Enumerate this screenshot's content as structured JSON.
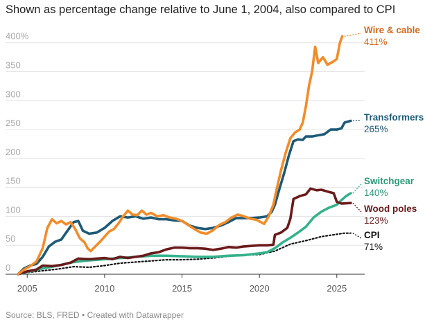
{
  "subtitle": "Shown as percentage change relative to June 1, 2004, also compared to CPI",
  "source": "Source: BLS, FRED • Created with Datawrapper",
  "chart_data": {
    "type": "line",
    "xlim": [
      2003.6,
      2026.8
    ],
    "ylim": [
      0,
      420
    ],
    "y_ticks": [
      {
        "value": 0,
        "label": "0"
      },
      {
        "value": 50,
        "label": "50"
      },
      {
        "value": 100,
        "label": "100"
      },
      {
        "value": 150,
        "label": "150"
      },
      {
        "value": 200,
        "label": "200"
      },
      {
        "value": 250,
        "label": "250"
      },
      {
        "value": 300,
        "label": "300"
      },
      {
        "value": 350,
        "label": "350"
      },
      {
        "value": 400,
        "label": "400%"
      }
    ],
    "x_ticks": [
      {
        "value": 2005,
        "label": "2005"
      },
      {
        "value": 2010,
        "label": "2010"
      },
      {
        "value": 2015,
        "label": "2015"
      },
      {
        "value": 2020,
        "label": "2020"
      },
      {
        "value": 2025,
        "label": "2025"
      }
    ],
    "series": [
      {
        "name": "Wire & cable",
        "end_label": "411%",
        "color": "#f28c28",
        "label_color": "#d4691a",
        "dash": false,
        "points": [
          [
            2004.4,
            0
          ],
          [
            2004.8,
            8
          ],
          [
            2005.2,
            14
          ],
          [
            2005.6,
            22
          ],
          [
            2006.0,
            45
          ],
          [
            2006.3,
            80
          ],
          [
            2006.6,
            95
          ],
          [
            2006.9,
            88
          ],
          [
            2007.2,
            92
          ],
          [
            2007.5,
            86
          ],
          [
            2007.8,
            90
          ],
          [
            2008.1,
            78
          ],
          [
            2008.4,
            62
          ],
          [
            2008.7,
            55
          ],
          [
            2008.9,
            45
          ],
          [
            2009.1,
            40
          ],
          [
            2009.4,
            48
          ],
          [
            2009.7,
            56
          ],
          [
            2010.0,
            65
          ],
          [
            2010.3,
            74
          ],
          [
            2010.6,
            78
          ],
          [
            2010.9,
            88
          ],
          [
            2011.2,
            100
          ],
          [
            2011.5,
            110
          ],
          [
            2011.8,
            103
          ],
          [
            2012.1,
            102
          ],
          [
            2012.4,
            110
          ],
          [
            2012.7,
            103
          ],
          [
            2013.0,
            106
          ],
          [
            2013.4,
            100
          ],
          [
            2013.8,
            102
          ],
          [
            2014.2,
            98
          ],
          [
            2014.6,
            96
          ],
          [
            2015.0,
            92
          ],
          [
            2015.4,
            85
          ],
          [
            2015.8,
            78
          ],
          [
            2016.2,
            72
          ],
          [
            2016.6,
            70
          ],
          [
            2017.0,
            76
          ],
          [
            2017.4,
            85
          ],
          [
            2017.8,
            90
          ],
          [
            2018.2,
            98
          ],
          [
            2018.6,
            103
          ],
          [
            2019.0,
            100
          ],
          [
            2019.4,
            96
          ],
          [
            2019.8,
            94
          ],
          [
            2020.1,
            90
          ],
          [
            2020.3,
            87
          ],
          [
            2020.6,
            100
          ],
          [
            2020.9,
            120
          ],
          [
            2021.1,
            145
          ],
          [
            2021.4,
            180
          ],
          [
            2021.7,
            210
          ],
          [
            2022.0,
            235
          ],
          [
            2022.3,
            245
          ],
          [
            2022.6,
            250
          ],
          [
            2022.8,
            262
          ],
          [
            2023.0,
            290
          ],
          [
            2023.2,
            325
          ],
          [
            2023.4,
            350
          ],
          [
            2023.6,
            393
          ],
          [
            2023.8,
            365
          ],
          [
            2024.1,
            375
          ],
          [
            2024.4,
            362
          ],
          [
            2024.8,
            368
          ],
          [
            2025.0,
            372
          ],
          [
            2025.2,
            400
          ],
          [
            2025.35,
            411
          ]
        ]
      },
      {
        "name": "Transformers",
        "end_label": "265%",
        "color": "#1d5a78",
        "label_color": "#1d5a78",
        "dash": false,
        "points": [
          [
            2004.4,
            0
          ],
          [
            2004.8,
            10
          ],
          [
            2005.2,
            15
          ],
          [
            2005.6,
            18
          ],
          [
            2006.0,
            30
          ],
          [
            2006.4,
            48
          ],
          [
            2006.8,
            56
          ],
          [
            2007.2,
            60
          ],
          [
            2007.6,
            75
          ],
          [
            2008.0,
            90
          ],
          [
            2008.3,
            92
          ],
          [
            2008.6,
            75
          ],
          [
            2009.0,
            70
          ],
          [
            2009.5,
            72
          ],
          [
            2010.0,
            80
          ],
          [
            2010.5,
            92
          ],
          [
            2011.0,
            100
          ],
          [
            2011.5,
            98
          ],
          [
            2012.0,
            100
          ],
          [
            2012.5,
            96
          ],
          [
            2013.0,
            98
          ],
          [
            2013.5,
            95
          ],
          [
            2014.0,
            95
          ],
          [
            2014.5,
            93
          ],
          [
            2015.0,
            92
          ],
          [
            2015.5,
            84
          ],
          [
            2016.0,
            80
          ],
          [
            2016.5,
            78
          ],
          [
            2017.0,
            80
          ],
          [
            2017.5,
            84
          ],
          [
            2018.0,
            90
          ],
          [
            2018.5,
            97
          ],
          [
            2019.0,
            97
          ],
          [
            2019.5,
            97
          ],
          [
            2020.0,
            98
          ],
          [
            2020.5,
            100
          ],
          [
            2020.8,
            108
          ],
          [
            2021.0,
            120
          ],
          [
            2021.3,
            148
          ],
          [
            2021.6,
            175
          ],
          [
            2021.9,
            205
          ],
          [
            2022.2,
            230
          ],
          [
            2022.5,
            233
          ],
          [
            2022.8,
            232
          ],
          [
            2023.0,
            238
          ],
          [
            2023.4,
            238
          ],
          [
            2023.8,
            240
          ],
          [
            2024.2,
            242
          ],
          [
            2024.6,
            250
          ],
          [
            2025.0,
            250
          ],
          [
            2025.3,
            252
          ],
          [
            2025.5,
            262
          ],
          [
            2025.9,
            265
          ]
        ]
      },
      {
        "name": "Switchgear",
        "end_label": "140%",
        "color": "#34b28c",
        "label_color": "#2a9a76",
        "dash": false,
        "points": [
          [
            2004.4,
            0
          ],
          [
            2005.0,
            4
          ],
          [
            2006.0,
            10
          ],
          [
            2007.0,
            15
          ],
          [
            2008.0,
            21
          ],
          [
            2009.0,
            24
          ],
          [
            2010.0,
            26
          ],
          [
            2011.0,
            28
          ],
          [
            2012.0,
            30
          ],
          [
            2013.0,
            32
          ],
          [
            2014.0,
            32
          ],
          [
            2015.0,
            31
          ],
          [
            2016.0,
            30
          ],
          [
            2017.0,
            30
          ],
          [
            2018.0,
            32
          ],
          [
            2019.0,
            33
          ],
          [
            2020.0,
            36
          ],
          [
            2020.5,
            38
          ],
          [
            2021.0,
            45
          ],
          [
            2021.5,
            55
          ],
          [
            2022.0,
            63
          ],
          [
            2022.5,
            72
          ],
          [
            2023.0,
            82
          ],
          [
            2023.5,
            98
          ],
          [
            2024.0,
            108
          ],
          [
            2024.5,
            115
          ],
          [
            2025.0,
            120
          ],
          [
            2025.3,
            128
          ],
          [
            2025.6,
            135
          ],
          [
            2025.9,
            140
          ]
        ]
      },
      {
        "name": "Wood poles",
        "end_label": "123%",
        "color": "#6b1a1a",
        "label_color": "#6b1a1a",
        "dash": false,
        "points": [
          [
            2004.4,
            0
          ],
          [
            2005.0,
            5
          ],
          [
            2005.6,
            8
          ],
          [
            2006.0,
            15
          ],
          [
            2006.6,
            14
          ],
          [
            2007.2,
            16
          ],
          [
            2007.8,
            20
          ],
          [
            2008.3,
            27
          ],
          [
            2009.0,
            26
          ],
          [
            2009.5,
            27
          ],
          [
            2010.0,
            28
          ],
          [
            2010.5,
            26
          ],
          [
            2011.0,
            30
          ],
          [
            2011.5,
            28
          ],
          [
            2012.0,
            30
          ],
          [
            2012.5,
            32
          ],
          [
            2013.0,
            36
          ],
          [
            2013.5,
            38
          ],
          [
            2014.0,
            43
          ],
          [
            2014.5,
            46
          ],
          [
            2015.0,
            46
          ],
          [
            2015.5,
            45
          ],
          [
            2016.0,
            45
          ],
          [
            2016.5,
            44
          ],
          [
            2017.0,
            42
          ],
          [
            2017.5,
            44
          ],
          [
            2018.0,
            47
          ],
          [
            2018.5,
            46
          ],
          [
            2019.0,
            48
          ],
          [
            2019.5,
            49
          ],
          [
            2020.0,
            50
          ],
          [
            2020.5,
            50
          ],
          [
            2020.9,
            51
          ],
          [
            2021.0,
            68
          ],
          [
            2021.4,
            72
          ],
          [
            2021.8,
            80
          ],
          [
            2022.0,
            96
          ],
          [
            2022.2,
            130
          ],
          [
            2022.6,
            135
          ],
          [
            2023.0,
            138
          ],
          [
            2023.3,
            148
          ],
          [
            2023.7,
            145
          ],
          [
            2024.0,
            146
          ],
          [
            2024.5,
            142
          ],
          [
            2024.8,
            140
          ],
          [
            2025.0,
            125
          ],
          [
            2025.3,
            122
          ],
          [
            2025.9,
            123
          ]
        ]
      },
      {
        "name": "CPI",
        "end_label": "71%",
        "color": "#111111",
        "label_color": "#111111",
        "dash": true,
        "points": [
          [
            2004.4,
            0
          ],
          [
            2005.0,
            3
          ],
          [
            2006.0,
            6
          ],
          [
            2007.0,
            9
          ],
          [
            2008.0,
            13
          ],
          [
            2009.0,
            12
          ],
          [
            2010.0,
            15
          ],
          [
            2011.0,
            19
          ],
          [
            2012.0,
            21
          ],
          [
            2013.0,
            23
          ],
          [
            2014.0,
            25
          ],
          [
            2015.0,
            25
          ],
          [
            2016.0,
            26
          ],
          [
            2017.0,
            28
          ],
          [
            2018.0,
            31
          ],
          [
            2019.0,
            33
          ],
          [
            2020.0,
            34
          ],
          [
            2021.0,
            40
          ],
          [
            2022.0,
            52
          ],
          [
            2023.0,
            58
          ],
          [
            2024.0,
            65
          ],
          [
            2025.0,
            69
          ],
          [
            2025.5,
            71
          ],
          [
            2025.9,
            71
          ]
        ]
      }
    ]
  }
}
